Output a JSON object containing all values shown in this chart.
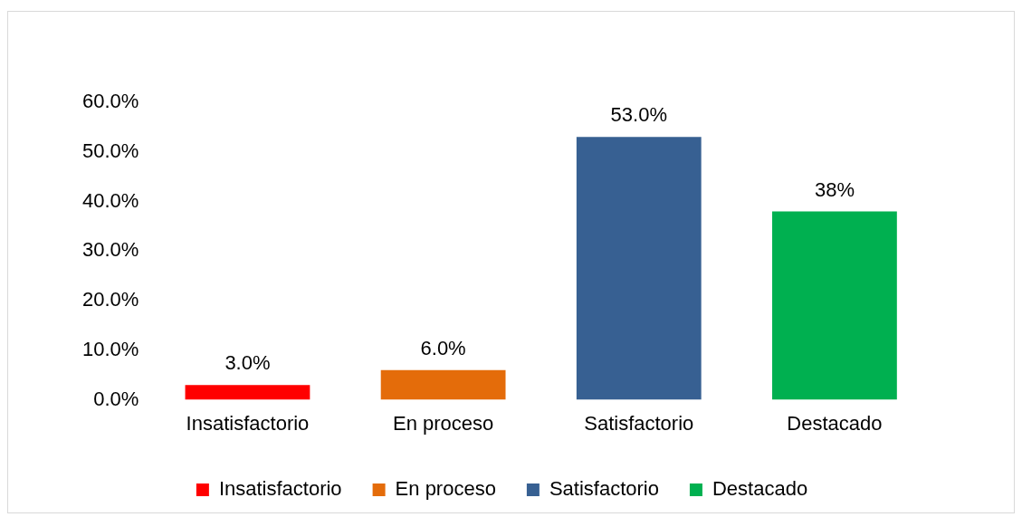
{
  "chart_data": {
    "type": "bar",
    "categories": [
      "Insatisfactorio",
      "En proceso",
      "Satisfactorio",
      "Destacado"
    ],
    "series": [
      {
        "name": "Insatisfactorio",
        "color": "#ff0000",
        "values": [
          3.0,
          null,
          null,
          null
        ],
        "value_labels": [
          "3.0%",
          null,
          null,
          null
        ]
      },
      {
        "name": "En proceso",
        "color": "#e46c0a",
        "values": [
          null,
          6.0,
          null,
          null
        ],
        "value_labels": [
          null,
          "6.0%",
          null,
          null
        ]
      },
      {
        "name": "Satisfactorio",
        "color": "#376092",
        "values": [
          null,
          null,
          53.0,
          null
        ],
        "value_labels": [
          null,
          null,
          "53.0%",
          null
        ]
      },
      {
        "name": "Destacado",
        "color": "#00b050",
        "values": [
          null,
          null,
          null,
          38
        ],
        "value_labels": [
          null,
          null,
          null,
          "38%"
        ]
      }
    ],
    "ylim": [
      0,
      60
    ],
    "yticks": [
      {
        "value": 0,
        "label": "0.0%"
      },
      {
        "value": 10,
        "label": "10.0%"
      },
      {
        "value": 20,
        "label": "20.0%"
      },
      {
        "value": 30,
        "label": "30.0%"
      },
      {
        "value": 40,
        "label": "40.0%"
      },
      {
        "value": 50,
        "label": "50.0%"
      },
      {
        "value": 60,
        "label": "60.0%"
      }
    ],
    "grid": false,
    "legend": "bottom"
  }
}
